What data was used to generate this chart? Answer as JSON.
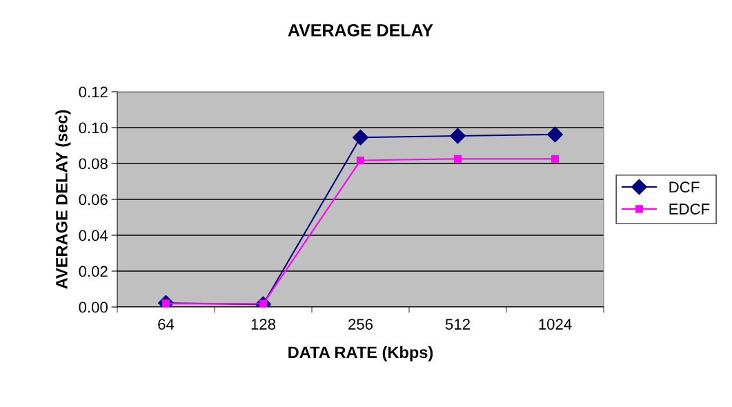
{
  "chart_data": {
    "type": "line",
    "title": "AVERAGE DELAY",
    "xlabel": "DATA RATE (Kbps)",
    "ylabel": "AVERAGE DELAY (sec)",
    "categories": [
      "64",
      "128",
      "256",
      "512",
      "1024"
    ],
    "series": [
      {
        "name": "DCF",
        "color": "#000080",
        "marker": "diamond",
        "values": [
          0.0022,
          0.0015,
          0.0945,
          0.0954,
          0.0962
        ]
      },
      {
        "name": "EDCF",
        "color": "#ff00ff",
        "marker": "square",
        "values": [
          0.002,
          0.0018,
          0.0817,
          0.0826,
          0.0826
        ]
      }
    ],
    "ylim": [
      0,
      0.12
    ],
    "yticks": [
      {
        "value": 0,
        "label": "0.00"
      },
      {
        "value": 0.02,
        "label": "0.02"
      },
      {
        "value": 0.04,
        "label": "0.04"
      },
      {
        "value": 0.06,
        "label": "0.06"
      },
      {
        "value": 0.08,
        "label": "0.08"
      },
      {
        "value": 0.1,
        "label": "0.10"
      },
      {
        "value": 0.12,
        "label": "0.12"
      }
    ],
    "grid": "y",
    "legend": "right"
  }
}
